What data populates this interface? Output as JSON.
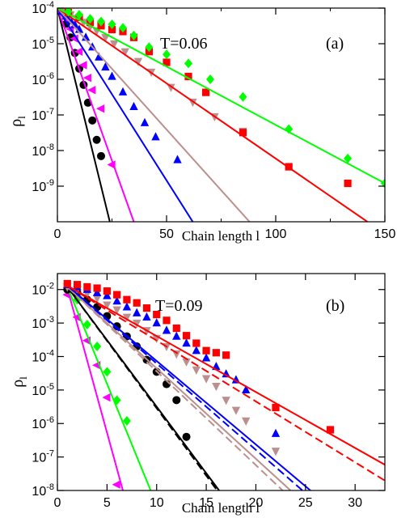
{
  "chart_data": [
    {
      "type": "scatter",
      "panel_label": "(a)",
      "annotation": "T=0.06",
      "xlabel": "Chain length l",
      "ylabel": "ρ",
      "ylabel_sub": "l",
      "yscale": "log",
      "xlim": [
        0,
        150
      ],
      "ylim": [
        1e-10,
        0.0001
      ],
      "x_ticks": [
        0,
        50,
        100,
        150
      ],
      "x_minor_ticks": [
        25,
        75,
        125
      ],
      "y_ticks": [
        {
          "value": 0.0001,
          "base": "10",
          "exp": "-4"
        },
        {
          "value": 1e-05,
          "base": "10",
          "exp": "-5"
        },
        {
          "value": 1e-06,
          "base": "10",
          "exp": "-6"
        },
        {
          "value": 1e-07,
          "base": "10",
          "exp": "-7"
        },
        {
          "value": 1e-08,
          "base": "10",
          "exp": "-8"
        },
        {
          "value": 1e-09,
          "base": "10",
          "exp": "-9"
        }
      ],
      "series": [
        {
          "color": "#000000",
          "marker": "circle",
          "x": [
            2,
            4,
            6,
            8,
            10,
            12,
            14,
            16,
            18,
            20
          ],
          "y": [
            8e-05,
            3.6e-05,
            1.5e-05,
            5.5e-06,
            2e-06,
            7e-07,
            2.2e-07,
            7e-08,
            2e-08,
            7e-09
          ],
          "fit": [
            [
              0,
              0.0001
            ],
            [
              24,
              1e-10
            ]
          ]
        },
        {
          "color": "#ff00ff",
          "marker": "triangle-left",
          "x": [
            2,
            4,
            6,
            8,
            10,
            12,
            14,
            16,
            20,
            25
          ],
          "y": [
            8e-05,
            5e-05,
            2.6e-05,
            1.4e-05,
            6e-06,
            2.5e-06,
            1.1e-06,
            5e-07,
            1.5e-07,
            4e-09
          ],
          "fit": [
            [
              0,
              0.0001
            ],
            [
              35,
              1e-10
            ]
          ]
        },
        {
          "color": "#0000ff",
          "marker": "triangle-up",
          "x": [
            2,
            4,
            6,
            8,
            10,
            13,
            16,
            19,
            22,
            25,
            30,
            35,
            40,
            45,
            55
          ],
          "y": [
            8e-05,
            6e-05,
            4.5e-05,
            3.4e-05,
            2.5e-05,
            1.5e-05,
            8e-06,
            4.2e-06,
            2.2e-06,
            1.2e-06,
            4.4e-07,
            1.7e-07,
            6e-08,
            2.4e-08,
            5.5e-09
          ],
          "fit": [
            [
              0,
              0.0001
            ],
            [
              62,
              1e-10
            ]
          ]
        },
        {
          "color": "#bc8f8f",
          "marker": "triangle-down",
          "x": [
            3,
            6,
            9,
            12,
            15,
            18,
            22,
            26,
            31,
            37,
            43,
            52,
            62,
            72,
            85
          ],
          "y": [
            8e-05,
            6.5e-05,
            5.2e-05,
            4e-05,
            3e-05,
            2.3e-05,
            1.5e-05,
            1e-05,
            6e-06,
            3.2e-06,
            1.6e-06,
            6e-07,
            2.3e-07,
            9e-08,
            3.5e-08
          ],
          "fit": [
            [
              0,
              0.0001
            ],
            [
              88,
              1e-10
            ]
          ]
        },
        {
          "color": "#ff0000",
          "marker": "square",
          "x": [
            5,
            10,
            15,
            20,
            25,
            30,
            35,
            42,
            50,
            60,
            68,
            85,
            106,
            133
          ],
          "y": [
            7.5e-05,
            5.5e-05,
            4e-05,
            3.2e-05,
            2.5e-05,
            2.2e-05,
            1.5e-05,
            6e-06,
            3e-06,
            1.2e-06,
            4.3e-07,
            3.2e-08,
            3.5e-09,
            1.2e-09
          ],
          "fit": [
            [
              0,
              0.0001
            ],
            [
              142,
              1e-10
            ]
          ]
        },
        {
          "color": "#00ff00",
          "marker": "diamond",
          "x": [
            5,
            10,
            15,
            20,
            25,
            30,
            35,
            42,
            50,
            60,
            70,
            85,
            106,
            133,
            150
          ],
          "y": [
            8e-05,
            6.5e-05,
            5e-05,
            4.2e-05,
            3.5e-05,
            2.8e-05,
            1.7e-05,
            8e-06,
            5e-06,
            2.8e-06,
            1e-06,
            3.2e-07,
            4e-08,
            6e-09,
            1.2e-09
          ],
          "fit": [
            [
              0,
              0.0001
            ],
            [
              150,
              1.2e-09
            ]
          ]
        }
      ]
    },
    {
      "type": "scatter",
      "panel_label": "(b)",
      "annotation": "T=0.09",
      "xlabel": "Chain length l",
      "ylabel": "ρ",
      "ylabel_sub": "l",
      "yscale": "log",
      "xlim": [
        0,
        33
      ],
      "ylim": [
        1e-08,
        0.03
      ],
      "x_ticks": [
        0,
        5,
        10,
        15,
        20,
        25,
        30
      ],
      "y_ticks": [
        {
          "value": 0.01,
          "base": "10",
          "exp": "-2"
        },
        {
          "value": 0.001,
          "base": "10",
          "exp": "-3"
        },
        {
          "value": 0.0001,
          "base": "10",
          "exp": "-4"
        },
        {
          "value": 1e-05,
          "base": "10",
          "exp": "-5"
        },
        {
          "value": 1e-06,
          "base": "10",
          "exp": "-6"
        },
        {
          "value": 1e-07,
          "base": "10",
          "exp": "-7"
        },
        {
          "value": 1e-08,
          "base": "10",
          "exp": "-8"
        }
      ],
      "series": [
        {
          "color": "#ff00ff",
          "marker": "triangle-left",
          "x": [
            1,
            2,
            3,
            4,
            5,
            6
          ],
          "y": [
            0.007,
            0.0015,
            0.0003,
            5.5e-05,
            6e-06,
            1.5e-08
          ],
          "fit": [
            [
              1,
              0.011
            ],
            [
              6.6,
              1e-08
            ]
          ]
        },
        {
          "color": "#00ff00",
          "marker": "diamond",
          "x": [
            1,
            2,
            3,
            4,
            5,
            6,
            7
          ],
          "y": [
            0.01,
            0.005,
            0.0009,
            0.0002,
            3.5e-05,
            5e-06,
            1.2e-06
          ],
          "fit": [
            [
              1,
              0.012
            ],
            [
              9.4,
              1e-08
            ]
          ]
        },
        {
          "color": "#000000",
          "marker": "circle",
          "x": [
            1,
            2,
            3,
            4,
            5,
            6,
            7,
            8,
            9,
            10,
            11,
            12,
            13
          ],
          "y": [
            0.01,
            0.008,
            0.005,
            0.003,
            0.0016,
            0.0008,
            0.0004,
            0.0002,
            8e-05,
            3.5e-05,
            1.5e-05,
            5e-06,
            4e-07
          ],
          "fit": [
            [
              1,
              0.012
            ],
            [
              16.3,
              1e-08
            ]
          ],
          "fit_dashed": [
            [
              1,
              0.012
            ],
            [
              16.1,
              1e-08
            ]
          ]
        },
        {
          "color": "#bc8f8f",
          "marker": "triangle-down",
          "x": [
            1,
            2,
            3,
            4,
            5,
            6,
            7,
            8,
            9,
            10,
            11,
            12,
            13,
            14,
            15,
            16,
            17,
            18,
            19,
            22
          ],
          "y": [
            0.012,
            0.01,
            0.0075,
            0.0055,
            0.0035,
            0.0025,
            0.0015,
            0.001,
            0.0006,
            0.00035,
            0.0002,
            0.00012,
            7e-05,
            4e-05,
            2.2e-05,
            1.3e-05,
            5e-06,
            2.5e-06,
            1.2e-06,
            1.5e-07
          ],
          "fit": [
            [
              1,
              0.012
            ],
            [
              23.5,
              1e-08
            ]
          ],
          "fit_dashed": [
            [
              1,
              0.012
            ],
            [
              22.7,
              1e-08
            ]
          ]
        },
        {
          "color": "#0000ff",
          "marker": "triangle-up",
          "x": [
            1,
            2,
            3,
            4,
            5,
            6,
            7,
            8,
            9,
            10,
            11,
            12,
            13,
            14,
            15,
            16,
            17,
            18,
            19,
            22
          ],
          "y": [
            0.014,
            0.012,
            0.01,
            0.008,
            0.0065,
            0.0045,
            0.003,
            0.002,
            0.0015,
            0.001,
            0.0006,
            0.0004,
            0.00025,
            0.00015,
            9e-05,
            5e-05,
            3e-05,
            2e-05,
            1e-05,
            5e-07
          ],
          "fit": [
            [
              1,
              0.013
            ],
            [
              25.5,
              1e-08
            ]
          ],
          "fit_dashed": [
            [
              1,
              0.013
            ],
            [
              24.7,
              1e-08
            ]
          ]
        },
        {
          "color": "#ff0000",
          "marker": "square",
          "x": [
            1,
            2,
            3,
            4,
            5,
            6,
            7,
            8,
            9,
            10,
            11,
            12,
            13,
            14,
            15,
            16,
            17,
            22,
            27.5
          ],
          "y": [
            0.015,
            0.014,
            0.012,
            0.011,
            0.009,
            0.007,
            0.005,
            0.004,
            0.0028,
            0.0018,
            0.0012,
            0.0007,
            0.00042,
            0.00025,
            0.00015,
            0.00013,
            0.00011,
            3e-06,
            6.5e-07
          ],
          "fit": [
            [
              1,
              0.013
            ],
            [
              34,
              4e-08
            ]
          ],
          "fit_dashed": [
            [
              1,
              0.013
            ],
            [
              34,
              1.3e-08
            ]
          ]
        }
      ]
    }
  ]
}
